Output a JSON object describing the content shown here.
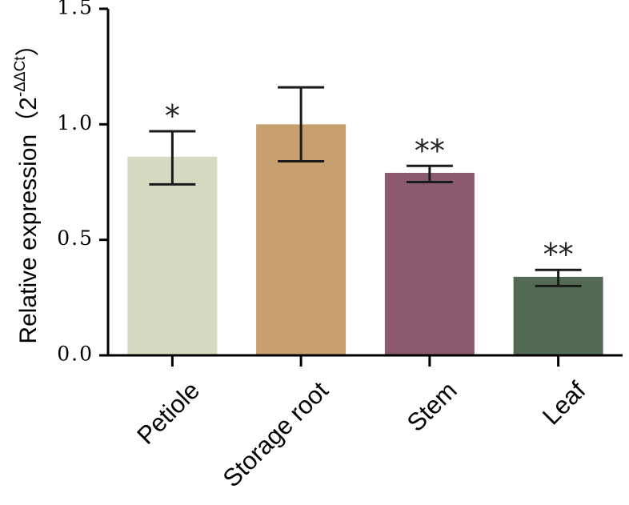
{
  "chart_data": {
    "type": "bar",
    "title": "",
    "xlabel": "",
    "ylabel": {
      "prefix": "Relative expression",
      "open_paren": "（",
      "base": "2",
      "superscript": "-ΔΔCt",
      "close_paren": "）"
    },
    "ylim": [
      0,
      1.5
    ],
    "yticks": [
      {
        "value": 0.0,
        "label": "0.0"
      },
      {
        "value": 0.5,
        "label": "0.5"
      },
      {
        "value": 1.0,
        "label": "1.0"
      },
      {
        "value": 1.5,
        "label": "1.5"
      }
    ],
    "categories": [
      "Petiole",
      "Storage root",
      "Stem",
      "Leaf"
    ],
    "values": [
      0.86,
      1.0,
      0.79,
      0.34
    ],
    "error_high": [
      0.97,
      1.16,
      0.82,
      0.37
    ],
    "error_low": [
      0.74,
      0.84,
      0.75,
      0.3
    ],
    "significance": [
      "*",
      "",
      "**",
      "**"
    ],
    "colors": [
      "#d5dbc0",
      "#c8a06f",
      "#8b5a71",
      "#536b54"
    ]
  }
}
